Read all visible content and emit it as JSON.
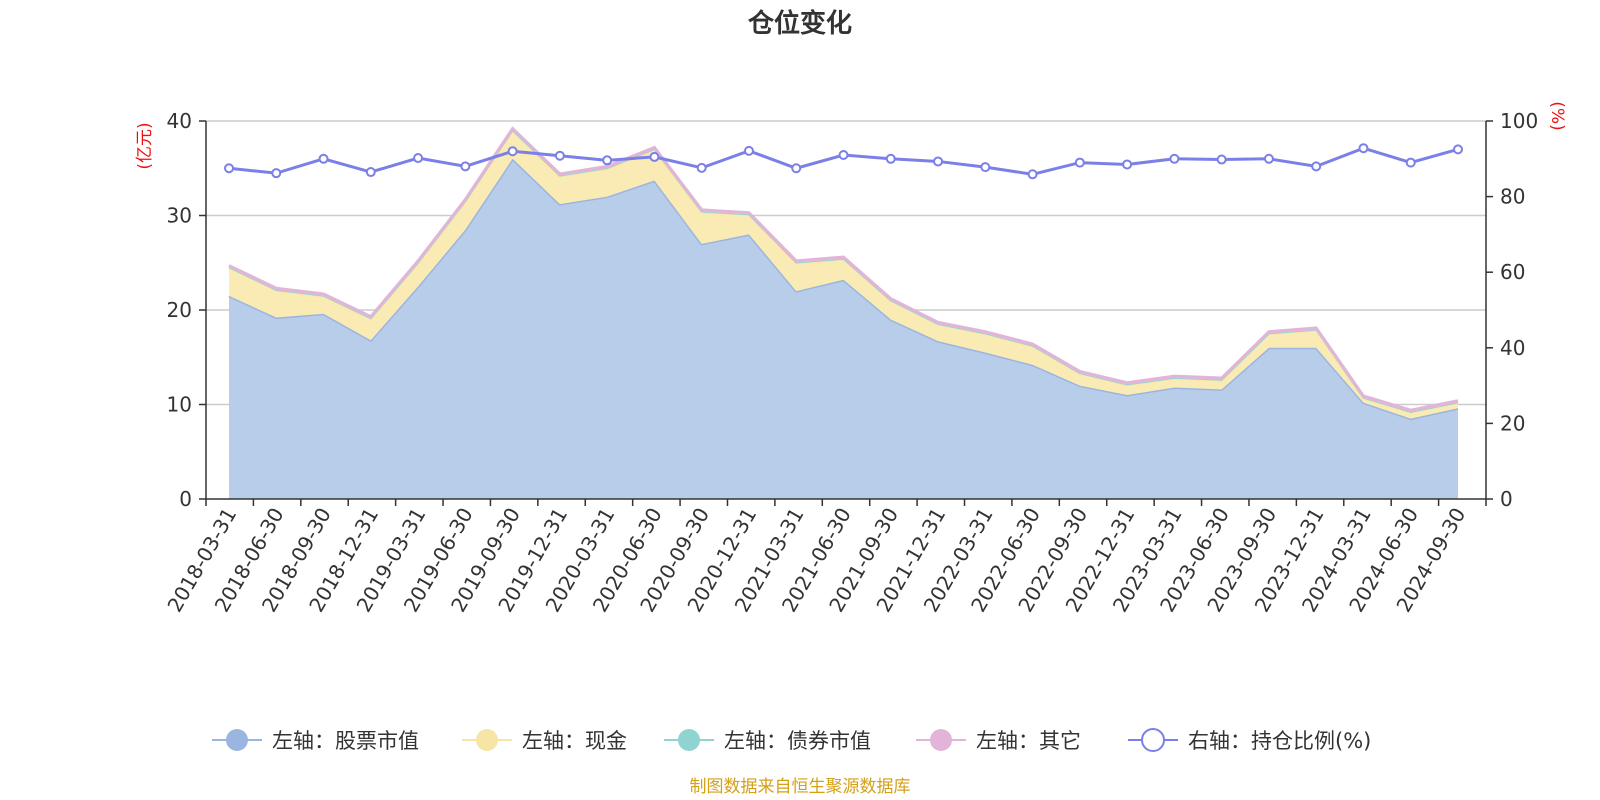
{
  "source_note": "制图数据来自恒生聚源数据库",
  "chart_data": {
    "type": "area",
    "title": "仓位变化",
    "left_axis": {
      "unit_label": "(亿元)",
      "ylim": [
        0,
        40
      ],
      "ticks": [
        0,
        10,
        20,
        30,
        40
      ]
    },
    "right_axis": {
      "unit_label": "(%)",
      "ylim": [
        0,
        100
      ],
      "ticks": [
        0,
        20,
        40,
        60,
        80,
        100
      ]
    },
    "grid": true,
    "legend_position": "bottom",
    "categories": [
      "2018-03-31",
      "2018-06-30",
      "2018-09-30",
      "2018-12-31",
      "2019-03-31",
      "2019-06-30",
      "2019-09-30",
      "2019-12-31",
      "2020-03-31",
      "2020-06-30",
      "2020-09-30",
      "2020-12-31",
      "2021-03-31",
      "2021-06-30",
      "2021-09-30",
      "2021-12-31",
      "2022-03-31",
      "2022-06-30",
      "2022-09-30",
      "2022-12-31",
      "2023-03-31",
      "2023-06-30",
      "2023-09-30",
      "2023-12-31",
      "2024-03-31",
      "2024-06-30",
      "2024-09-30"
    ],
    "series": [
      {
        "name": "左轴：股票市值",
        "axis": "left",
        "stacked": true,
        "color": "#9ab6e0",
        "fill": "#b8cdea",
        "values": [
          21.5,
          19.2,
          19.6,
          16.8,
          22.5,
          28.5,
          36.0,
          31.2,
          32.0,
          33.7,
          27.0,
          28.0,
          22.0,
          23.2,
          19.0,
          16.7,
          15.5,
          14.2,
          12.0,
          11.0,
          11.8,
          11.6,
          16.0,
          16.0,
          10.2,
          8.5,
          9.6
        ]
      },
      {
        "name": "左轴：现金",
        "axis": "left",
        "stacked": true,
        "color": "#f6e5a5",
        "fill": "#faebb5",
        "values": [
          3.0,
          2.9,
          1.9,
          2.3,
          2.5,
          3.0,
          3.0,
          3.0,
          3.0,
          3.3,
          3.4,
          2.1,
          3.0,
          2.2,
          2.0,
          1.8,
          2.0,
          2.0,
          1.3,
          1.1,
          1.0,
          1.0,
          1.5,
          1.9,
          0.5,
          0.7,
          0.6
        ]
      },
      {
        "name": "左轴：债券市值",
        "axis": "left",
        "stacked": true,
        "color": "#8fd4d1",
        "fill": "#a9dfdd",
        "values": [
          0,
          0,
          0,
          0,
          0,
          0,
          0,
          0,
          0,
          0,
          0,
          0,
          0,
          0,
          0,
          0,
          0,
          0,
          0,
          0,
          0,
          0,
          0,
          0,
          0,
          0,
          0
        ]
      },
      {
        "name": "左轴：其它",
        "axis": "left",
        "stacked": true,
        "color": "#e3b4d9",
        "fill": "#e8bfdf",
        "values": [
          0.2,
          0.2,
          0.2,
          0.2,
          0.2,
          0.2,
          0.2,
          0.2,
          0.2,
          0.2,
          0.2,
          0.2,
          0.2,
          0.2,
          0.2,
          0.2,
          0.2,
          0.2,
          0.2,
          0.2,
          0.2,
          0.2,
          0.2,
          0.2,
          0.2,
          0.2,
          0.2
        ]
      },
      {
        "name": "右轴：持仓比例(%)",
        "axis": "right",
        "type": "line",
        "color": "#7b7fe8",
        "values": [
          87.5,
          86.2,
          90.0,
          86.5,
          90.2,
          88.0,
          92.0,
          90.8,
          89.6,
          90.5,
          87.6,
          92.1,
          87.5,
          91.0,
          90.0,
          89.3,
          87.8,
          85.9,
          89.0,
          88.5,
          90.0,
          89.8,
          90.0,
          88.0,
          92.8,
          89.0,
          92.5
        ]
      }
    ]
  }
}
